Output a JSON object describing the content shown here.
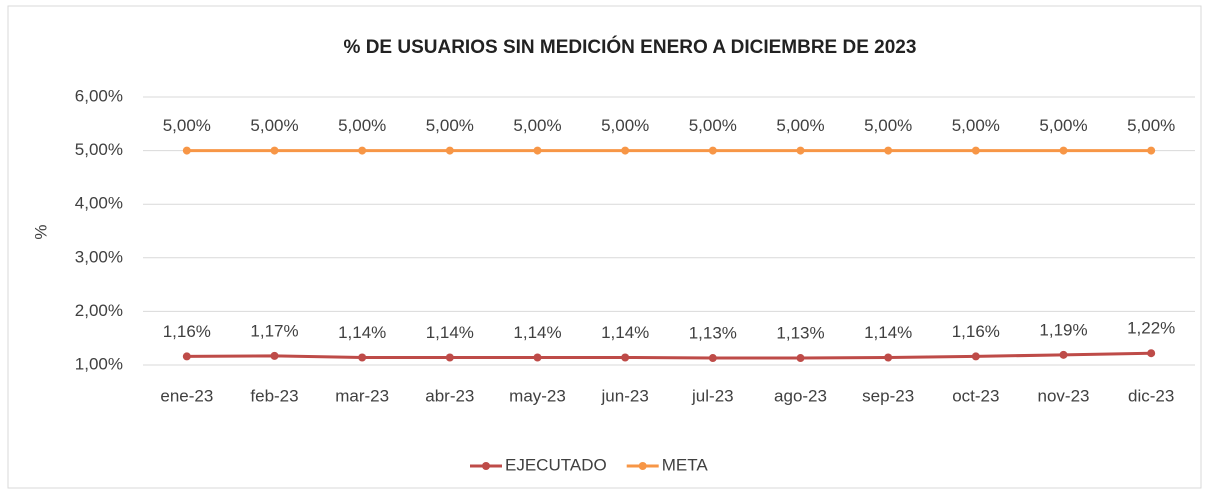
{
  "chart_data": {
    "type": "line",
    "title": "% DE USUARIOS SIN MEDICIÓN ENERO A DICIEMBRE DE 2023",
    "y_label": "%",
    "categories": [
      "ene-23",
      "feb-23",
      "mar-23",
      "abr-23",
      "may-23",
      "jun-23",
      "jul-23",
      "ago-23",
      "sep-23",
      "oct-23",
      "nov-23",
      "dic-23"
    ],
    "series": [
      {
        "name": "EJECUTADO",
        "color": "#be4b48",
        "values": [
          1.16,
          1.17,
          1.14,
          1.14,
          1.14,
          1.14,
          1.13,
          1.13,
          1.14,
          1.16,
          1.19,
          1.22
        ],
        "value_labels": [
          "1,16%",
          "1,17%",
          "1,14%",
          "1,14%",
          "1,14%",
          "1,14%",
          "1,13%",
          "1,13%",
          "1,14%",
          "1,16%",
          "1,19%",
          "1,22%"
        ]
      },
      {
        "name": "META",
        "color": "#f79646",
        "values": [
          5,
          5,
          5,
          5,
          5,
          5,
          5,
          5,
          5,
          5,
          5,
          5
        ],
        "value_labels": [
          "5,00%",
          "5,00%",
          "5,00%",
          "5,00%",
          "5,00%",
          "5,00%",
          "5,00%",
          "5,00%",
          "5,00%",
          "5,00%",
          "5,00%",
          "5,00%"
        ]
      }
    ],
    "ylim": [
      1,
      6
    ],
    "yticks": [
      {
        "value": 1,
        "label": "1,00%"
      },
      {
        "value": 2,
        "label": "2,00%"
      },
      {
        "value": 3,
        "label": "3,00%"
      },
      {
        "value": 4,
        "label": "4,00%"
      },
      {
        "value": 5,
        "label": "5,00%"
      },
      {
        "value": 6,
        "label": "6,00%"
      }
    ],
    "grid": true,
    "legend": "bottom"
  }
}
